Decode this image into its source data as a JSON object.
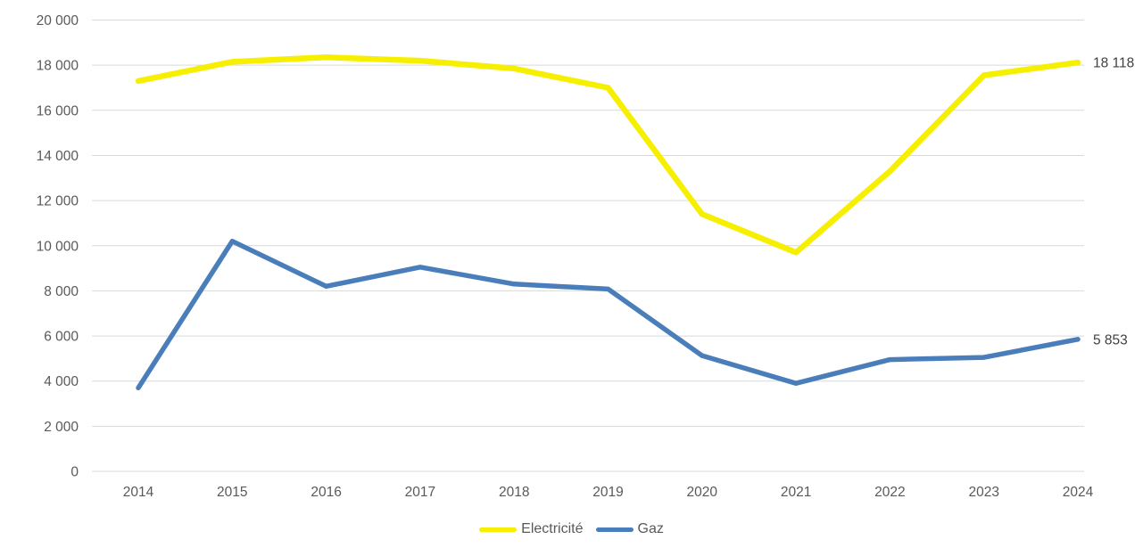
{
  "chart_data": {
    "type": "line",
    "title": "",
    "xlabel": "",
    "ylabel": "",
    "grid": true,
    "legend_position": "bottom",
    "categories": [
      "2014",
      "2015",
      "2016",
      "2017",
      "2018",
      "2019",
      "2020",
      "2021",
      "2022",
      "2023",
      "2024"
    ],
    "series": [
      {
        "name": "Electricité",
        "color": "#f7ef00",
        "values": [
          17300,
          18150,
          18350,
          18200,
          17850,
          17000,
          11400,
          9700,
          13300,
          17550,
          18118
        ],
        "end_label": "18 118"
      },
      {
        "name": "Gaz",
        "color": "#4a7ebb",
        "values": [
          3700,
          10200,
          8200,
          9050,
          8300,
          8080,
          5130,
          3900,
          4950,
          5050,
          5853
        ],
        "end_label": "5 853"
      }
    ],
    "ylim": [
      0,
      20000
    ],
    "y_tick_step": 2000,
    "y_tick_labels": [
      "0",
      "2 000",
      "4 000",
      "6 000",
      "8 000",
      "10 000",
      "12 000",
      "14 000",
      "16 000",
      "18 000",
      "20 000"
    ]
  },
  "colors": {
    "background": "#ffffff",
    "gridline": "#d9d9d9",
    "axis_text": "#595959",
    "data_label_text": "#404040"
  }
}
